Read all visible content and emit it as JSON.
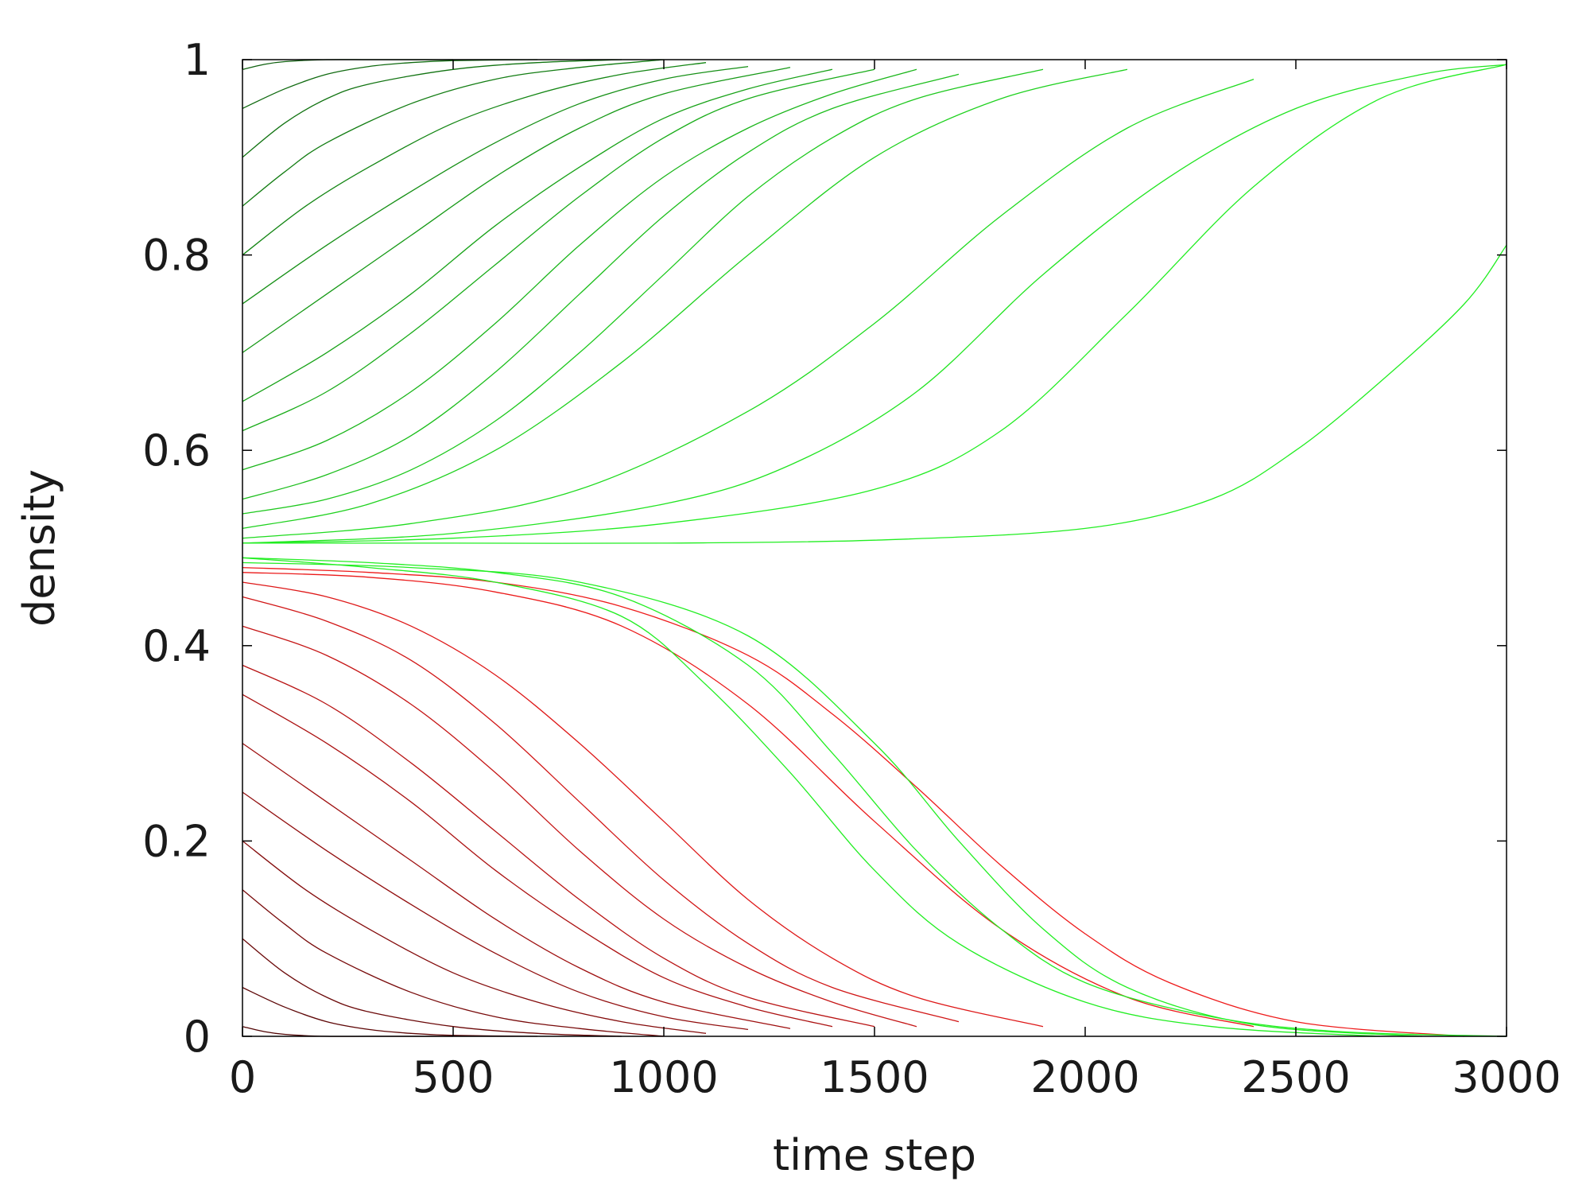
{
  "chart_data": {
    "type": "line",
    "title": "",
    "xlabel": "time step",
    "ylabel": "density",
    "xlim": [
      0,
      3000
    ],
    "ylim": [
      0,
      1
    ],
    "xticks": [
      "0",
      "500",
      "1000",
      "1500",
      "2000",
      "2500",
      "3000"
    ],
    "yticks": [
      "0",
      "0.2",
      "0.4",
      "0.6",
      "0.8",
      "1"
    ],
    "grid": false,
    "legend": "none",
    "colors": {
      "up_start": "#0a3d0a",
      "up_end": "#22ee22",
      "down_start": "#2a0000",
      "down_end": "#ee1a1a",
      "axis": "#000000",
      "text": "#1a1a1a"
    },
    "series_groups": [
      {
        "direction": "to_1",
        "color_scheme": "dark-green to bright-green",
        "series": [
          {
            "x": [
              0,
              50,
              100,
              200,
              300,
              400,
              500
            ],
            "y": [
              0.99,
              0.995,
              0.998,
              1.0,
              1.0,
              1.0,
              1.0
            ]
          },
          {
            "x": [
              0,
              100,
              200,
              300,
              400,
              500,
              700
            ],
            "y": [
              0.95,
              0.97,
              0.985,
              0.993,
              0.997,
              0.999,
              1.0
            ]
          },
          {
            "x": [
              0,
              100,
              200,
              300,
              500,
              700,
              900
            ],
            "y": [
              0.9,
              0.935,
              0.96,
              0.975,
              0.99,
              0.997,
              1.0
            ]
          },
          {
            "x": [
              0,
              100,
              200,
              400,
              600,
              800,
              1000
            ],
            "y": [
              0.85,
              0.885,
              0.915,
              0.955,
              0.98,
              0.992,
              1.0
            ]
          },
          {
            "x": [
              0,
              150,
              300,
              500,
              700,
              900,
              1100
            ],
            "y": [
              0.8,
              0.85,
              0.89,
              0.935,
              0.965,
              0.985,
              0.997
            ]
          },
          {
            "x": [
              0,
              200,
              400,
              600,
              800,
              1000,
              1200
            ],
            "y": [
              0.75,
              0.81,
              0.865,
              0.915,
              0.955,
              0.98,
              0.993
            ]
          },
          {
            "x": [
              0,
              200,
              400,
              600,
              800,
              1000,
              1300
            ],
            "y": [
              0.7,
              0.76,
              0.82,
              0.88,
              0.93,
              0.965,
              0.992
            ]
          },
          {
            "x": [
              0,
              200,
              400,
              600,
              800,
              1000,
              1200,
              1400
            ],
            "y": [
              0.65,
              0.7,
              0.76,
              0.83,
              0.89,
              0.94,
              0.97,
              0.99
            ]
          },
          {
            "x": [
              0,
              200,
              400,
              600,
              800,
              1000,
              1200,
              1500
            ],
            "y": [
              0.62,
              0.66,
              0.72,
              0.79,
              0.86,
              0.92,
              0.96,
              0.99
            ]
          },
          {
            "x": [
              0,
              200,
              400,
              600,
              800,
              1000,
              1200,
              1400,
              1600
            ],
            "y": [
              0.58,
              0.61,
              0.66,
              0.73,
              0.81,
              0.88,
              0.93,
              0.965,
              0.99
            ]
          },
          {
            "x": [
              0,
              200,
              400,
              600,
              800,
              1000,
              1200,
              1400,
              1700
            ],
            "y": [
              0.55,
              0.575,
              0.615,
              0.68,
              0.76,
              0.84,
              0.905,
              0.95,
              0.985
            ]
          },
          {
            "x": [
              0,
              200,
              400,
              600,
              800,
              1000,
              1200,
              1400,
              1600,
              1900
            ],
            "y": [
              0.535,
              0.55,
              0.58,
              0.63,
              0.7,
              0.78,
              0.86,
              0.92,
              0.96,
              0.99
            ]
          },
          {
            "x": [
              0,
              300,
              600,
              900,
              1200,
              1500,
              1800,
              2100
            ],
            "y": [
              0.52,
              0.545,
              0.6,
              0.69,
              0.8,
              0.9,
              0.96,
              0.99
            ]
          },
          {
            "x": [
              0,
              400,
              800,
              1200,
              1500,
              1800,
              2100,
              2400
            ],
            "y": [
              0.51,
              0.525,
              0.56,
              0.64,
              0.73,
              0.84,
              0.93,
              0.98
            ]
          },
          {
            "x": [
              0,
              500,
              1000,
              1300,
              1600,
              1900,
              2200,
              2500,
              2800,
              3000
            ],
            "y": [
              0.505,
              0.515,
              0.545,
              0.585,
              0.66,
              0.78,
              0.88,
              0.95,
              0.985,
              0.995
            ]
          },
          {
            "x": [
              0,
              500,
              1000,
              1500,
              1800,
              2100,
              2400,
              2700,
              3000
            ],
            "y": [
              0.505,
              0.51,
              0.525,
              0.56,
              0.62,
              0.74,
              0.87,
              0.96,
              0.995
            ]
          },
          {
            "x": [
              0,
              500,
              1000,
              1500,
              2000,
              2300,
              2500,
              2700,
              2900,
              3000
            ],
            "y": [
              0.505,
              0.505,
              0.505,
              0.508,
              0.52,
              0.55,
              0.6,
              0.67,
              0.75,
              0.81
            ]
          }
        ]
      },
      {
        "direction": "to_0",
        "color_scheme": "dark-red to bright-red",
        "series": [
          {
            "x": [
              0,
              50,
              100,
              200,
              300,
              400,
              500
            ],
            "y": [
              0.01,
              0.005,
              0.002,
              0.0,
              0.0,
              0.0,
              0.0
            ]
          },
          {
            "x": [
              0,
              100,
              200,
              300,
              400,
              500,
              700
            ],
            "y": [
              0.05,
              0.03,
              0.015,
              0.007,
              0.003,
              0.001,
              0.0
            ]
          },
          {
            "x": [
              0,
              100,
              200,
              300,
              500,
              700,
              900
            ],
            "y": [
              0.1,
              0.065,
              0.04,
              0.025,
              0.01,
              0.003,
              0.0
            ]
          },
          {
            "x": [
              0,
              100,
              200,
              400,
              600,
              800,
              1000
            ],
            "y": [
              0.15,
              0.115,
              0.085,
              0.045,
              0.02,
              0.008,
              0.0
            ]
          },
          {
            "x": [
              0,
              150,
              300,
              500,
              700,
              900,
              1100
            ],
            "y": [
              0.2,
              0.15,
              0.11,
              0.065,
              0.035,
              0.015,
              0.003
            ]
          },
          {
            "x": [
              0,
              200,
              400,
              600,
              800,
              1000,
              1200
            ],
            "y": [
              0.25,
              0.19,
              0.135,
              0.085,
              0.045,
              0.02,
              0.007
            ]
          },
          {
            "x": [
              0,
              200,
              400,
              600,
              800,
              1000,
              1300
            ],
            "y": [
              0.3,
              0.24,
              0.18,
              0.12,
              0.07,
              0.035,
              0.008
            ]
          },
          {
            "x": [
              0,
              200,
              400,
              600,
              800,
              1000,
              1200,
              1400
            ],
            "y": [
              0.35,
              0.3,
              0.24,
              0.17,
              0.11,
              0.06,
              0.03,
              0.01
            ]
          },
          {
            "x": [
              0,
              200,
              400,
              600,
              800,
              1000,
              1200,
              1500
            ],
            "y": [
              0.38,
              0.34,
              0.28,
              0.21,
              0.14,
              0.08,
              0.04,
              0.01
            ]
          },
          {
            "x": [
              0,
              200,
              400,
              600,
              800,
              1000,
              1200,
              1400,
              1600
            ],
            "y": [
              0.42,
              0.39,
              0.34,
              0.27,
              0.19,
              0.12,
              0.07,
              0.035,
              0.01
            ]
          },
          {
            "x": [
              0,
              200,
              400,
              600,
              800,
              1000,
              1200,
              1400,
              1700
            ],
            "y": [
              0.45,
              0.425,
              0.385,
              0.32,
              0.24,
              0.16,
              0.095,
              0.05,
              0.015
            ]
          },
          {
            "x": [
              0,
              200,
              400,
              600,
              800,
              1000,
              1200,
              1400,
              1600,
              1900
            ],
            "y": [
              0.465,
              0.45,
              0.42,
              0.37,
              0.3,
              0.22,
              0.14,
              0.08,
              0.04,
              0.01
            ]
          },
          {
            "x": [
              0,
              300,
              600,
              900,
              1200,
              1500,
              1800,
              2100,
              2400
            ],
            "y": [
              0.475,
              0.47,
              0.455,
              0.42,
              0.34,
              0.22,
              0.11,
              0.04,
              0.01
            ]
          },
          {
            "x": [
              0,
              300,
              600,
              900,
              1200,
              1400,
              1600,
              1800,
              2000,
              2200,
              2500,
              2900
            ],
            "y": [
              0.48,
              0.475,
              0.465,
              0.44,
              0.39,
              0.33,
              0.255,
              0.175,
              0.105,
              0.055,
              0.015,
              0.0
            ]
          }
        ]
      },
      {
        "direction": "to_1_from_below",
        "color_scheme": "bright-green crossing",
        "series": [
          {
            "x": [
              0,
              300,
              600,
              900,
              1200,
              1400,
              1600,
              1800,
              2000,
              2300,
              2600,
              3000
            ],
            "y": [
              0.49,
              0.485,
              0.475,
              0.45,
              0.38,
              0.29,
              0.19,
              0.11,
              0.055,
              0.02,
              0.005,
              0.0
            ]
          },
          {
            "x": [
              0,
              300,
              600,
              900,
              1100,
              1300,
              1500,
              1700,
              2000,
              2300,
              2700
            ],
            "y": [
              0.49,
              0.48,
              0.465,
              0.43,
              0.36,
              0.27,
              0.17,
              0.095,
              0.035,
              0.01,
              0.0
            ]
          },
          {
            "x": [
              0,
              400,
              800,
              1200,
              1500,
              1700,
              1900,
              2100,
              2400,
              2800
            ],
            "y": [
              0.485,
              0.48,
              0.465,
              0.41,
              0.3,
              0.2,
              0.11,
              0.05,
              0.012,
              0.0
            ]
          }
        ]
      }
    ]
  }
}
